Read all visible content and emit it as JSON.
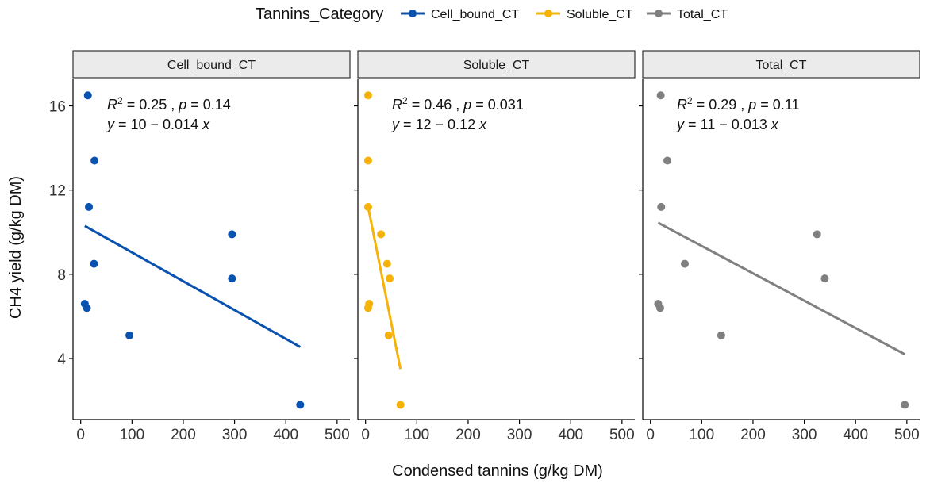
{
  "chart_data": {
    "type": "scatter",
    "legend": {
      "title": "Tannins_Category",
      "position": "top",
      "items": [
        {
          "label": "Cell_bound_CT",
          "color": "#0a52b0"
        },
        {
          "label": "Soluble_CT",
          "color": "#f5b30a"
        },
        {
          "label": "Total_CT",
          "color": "#808080"
        }
      ]
    },
    "xlabel": "Condensed tannins (g/kg DM)",
    "ylabel": "CH4 yield (g/kg DM)",
    "xlim": [
      -15,
      525
    ],
    "ylim": [
      1.1,
      17.3
    ],
    "xticks": [
      0,
      100,
      200,
      300,
      400,
      500
    ],
    "yticks": [
      4,
      8,
      12,
      16
    ],
    "grid": false,
    "panels": [
      {
        "name": "Cell_bound_CT",
        "color": "#0a52b0",
        "points": [
          {
            "x": 14,
            "y": 16.5
          },
          {
            "x": 27,
            "y": 13.4
          },
          {
            "x": 16,
            "y": 11.2
          },
          {
            "x": 26,
            "y": 8.5
          },
          {
            "x": 8,
            "y": 6.6
          },
          {
            "x": 12,
            "y": 6.4
          },
          {
            "x": 95,
            "y": 5.1
          },
          {
            "x": 295,
            "y": 9.9
          },
          {
            "x": 295,
            "y": 7.8
          },
          {
            "x": 428,
            "y": 1.8
          }
        ],
        "fit": {
          "x": [
            8,
            428
          ],
          "y": [
            10.3,
            4.55
          ]
        },
        "annotation": {
          "r2": "0.25",
          "p": "0.14",
          "eq_lhs": "y",
          "eq_rhs": " = 10 − 0.014 ",
          "eq_var": "x"
        }
      },
      {
        "name": "Soluble_CT",
        "color": "#f5b30a",
        "points": [
          {
            "x": 5,
            "y": 16.5
          },
          {
            "x": 5,
            "y": 13.4
          },
          {
            "x": 5,
            "y": 11.2
          },
          {
            "x": 30,
            "y": 9.9
          },
          {
            "x": 42,
            "y": 8.5
          },
          {
            "x": 47,
            "y": 7.8
          },
          {
            "x": 7,
            "y": 6.6
          },
          {
            "x": 5,
            "y": 6.4
          },
          {
            "x": 45,
            "y": 5.1
          },
          {
            "x": 68,
            "y": 1.8
          }
        ],
        "fit": {
          "x": [
            5,
            68
          ],
          "y": [
            11.2,
            3.5
          ]
        },
        "annotation": {
          "r2": "0.46",
          "p": "0.031",
          "eq_lhs": "y",
          "eq_rhs": " = 12 − 0.12 ",
          "eq_var": "x"
        }
      },
      {
        "name": "Total_CT",
        "color": "#808080",
        "points": [
          {
            "x": 20,
            "y": 16.5
          },
          {
            "x": 33,
            "y": 13.4
          },
          {
            "x": 21,
            "y": 11.2
          },
          {
            "x": 67,
            "y": 8.5
          },
          {
            "x": 15,
            "y": 6.6
          },
          {
            "x": 19,
            "y": 6.4
          },
          {
            "x": 138,
            "y": 5.1
          },
          {
            "x": 325,
            "y": 9.9
          },
          {
            "x": 340,
            "y": 7.8
          },
          {
            "x": 496,
            "y": 1.8
          }
        ],
        "fit": {
          "x": [
            15,
            496
          ],
          "y": [
            10.45,
            4.2
          ]
        },
        "annotation": {
          "r2": "0.29",
          "p": "0.11",
          "eq_lhs": "y",
          "eq_rhs": " = 11 − 0.013 ",
          "eq_var": "x"
        }
      }
    ]
  }
}
